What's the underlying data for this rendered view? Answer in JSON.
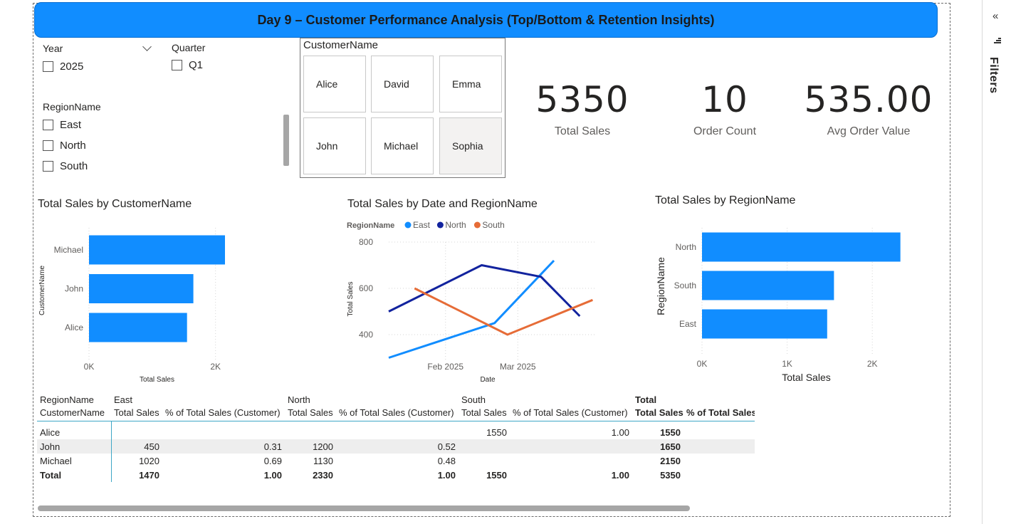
{
  "title": "Day 9 – Customer Performance Analysis (Top/Bottom & Retention Insights)",
  "filters_pane": {
    "label": "Filters",
    "collapse_icon": "double-chevron-left-icon",
    "filter_icon": "filter-icon"
  },
  "slicers": {
    "year": {
      "title": "Year",
      "options": [
        "2025"
      ]
    },
    "quarter": {
      "title": "Quarter",
      "options": [
        "Q1"
      ]
    },
    "region": {
      "title": "RegionName",
      "options": [
        "East",
        "North",
        "South"
      ]
    },
    "customer": {
      "title": "CustomerName",
      "options": [
        "Alice",
        "David",
        "Emma",
        "John",
        "Michael",
        "Sophia"
      ],
      "selected": "Sophia"
    }
  },
  "cards": [
    {
      "value": "5350",
      "label": "Total Sales"
    },
    {
      "value": "10",
      "label": "Order Count"
    },
    {
      "value": "535.00",
      "label": "Avg Order Value"
    }
  ],
  "charts": {
    "customer_bar": {
      "title": "Total Sales by CustomerName"
    },
    "date_line": {
      "title": "Total Sales by Date and RegionName"
    },
    "region_bar": {
      "title": "Total Sales by RegionName"
    }
  },
  "chart_data": [
    {
      "type": "bar",
      "orientation": "horizontal",
      "title": "Total Sales by CustomerName",
      "xlabel": "Total Sales",
      "ylabel": "CustomerName",
      "categories": [
        "Michael",
        "John",
        "Alice"
      ],
      "values": [
        2150,
        1650,
        1550
      ],
      "xlim": [
        0,
        2150
      ],
      "xticks": [
        "0K",
        "2K"
      ],
      "color": "#118dff",
      "grid": true
    },
    {
      "type": "line",
      "title": "Total Sales by Date and RegionName",
      "xlabel": "Date",
      "ylabel": "Total Sales",
      "legend_title": "RegionName",
      "legend_position": "top-left",
      "x_ticks": [
        "Feb 2025",
        "Mar 2025"
      ],
      "yticks": [
        400,
        600,
        800
      ],
      "ylim": [
        300,
        800
      ],
      "series": [
        {
          "name": "East",
          "color": "#118dff",
          "points": [
            [
              "2025-01-10",
              300
            ],
            [
              "2025-02-20",
              450
            ],
            [
              "2025-03-15",
              720
            ]
          ]
        },
        {
          "name": "North",
          "color": "#12239e",
          "points": [
            [
              "2025-01-10",
              500
            ],
            [
              "2025-02-15",
              700
            ],
            [
              "2025-03-10",
              650
            ],
            [
              "2025-03-25",
              480
            ]
          ]
        },
        {
          "name": "South",
          "color": "#e66c37",
          "points": [
            [
              "2025-01-20",
              600
            ],
            [
              "2025-02-25",
              400
            ],
            [
              "2025-03-30",
              550
            ]
          ]
        }
      ],
      "grid": true
    },
    {
      "type": "bar",
      "orientation": "horizontal",
      "title": "Total Sales by RegionName",
      "xlabel": "Total Sales",
      "ylabel": "RegionName",
      "categories": [
        "North",
        "South",
        "East"
      ],
      "values": [
        2330,
        1550,
        1470
      ],
      "xlim": [
        0,
        2450
      ],
      "xticks": [
        "0K",
        "1K",
        "2K"
      ],
      "color": "#118dff",
      "grid": true
    }
  ],
  "matrix": {
    "header_top": [
      "RegionName",
      "East",
      "",
      "North",
      "",
      "South",
      "",
      "Total",
      ""
    ],
    "header_bottom": [
      "CustomerName",
      "Total Sales",
      "% of Total Sales (Customer)",
      "Total Sales",
      "% of Total Sales (Customer)",
      "Total Sales",
      "% of Total Sales (Customer)",
      "Total Sales",
      "% of Total Sales"
    ],
    "rows": [
      [
        "Alice",
        "",
        "",
        "",
        "",
        "1550",
        "1.00",
        "1550",
        ""
      ],
      [
        "John",
        "450",
        "0.31",
        "1200",
        "0.52",
        "",
        "",
        "1650",
        ""
      ],
      [
        "Michael",
        "1020",
        "0.69",
        "1130",
        "0.48",
        "",
        "",
        "2150",
        ""
      ],
      [
        "Total",
        "1470",
        "1.00",
        "2330",
        "1.00",
        "1550",
        "1.00",
        "5350",
        ""
      ]
    ]
  }
}
